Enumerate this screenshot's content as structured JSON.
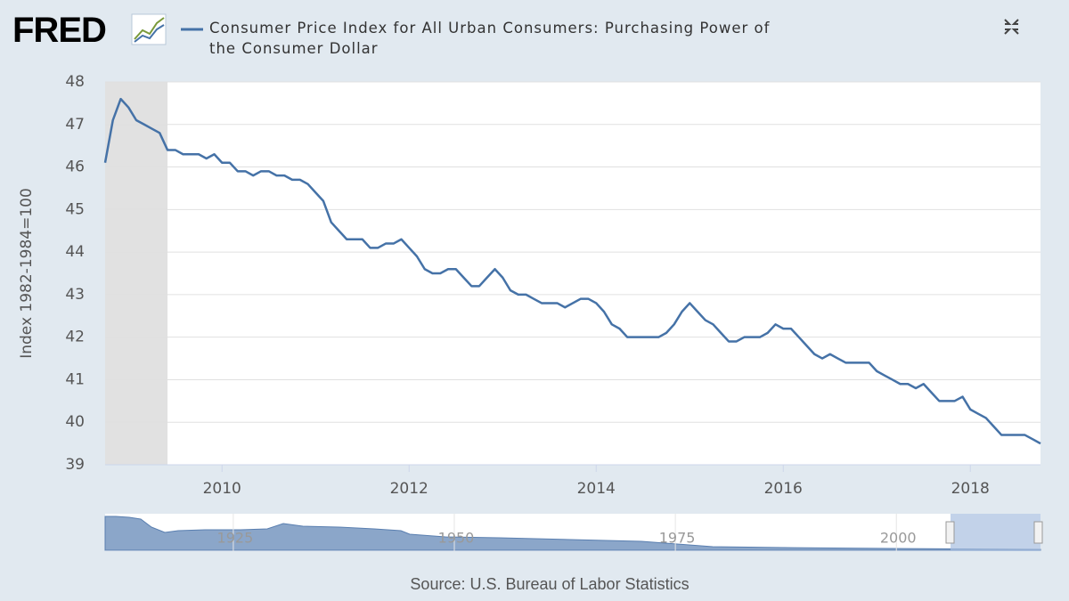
{
  "chart_data": {
    "type": "line",
    "logo": "FRED",
    "ylabel": "Index 1982-1984=100",
    "source": "Source: U.S. Bureau of Labor Statistics",
    "xlim": [
      2008.75,
      2018.75
    ],
    "xticks": [
      2010,
      2012,
      2014,
      2016,
      2018
    ],
    "ylim": [
      39,
      48
    ],
    "yticks": [
      39,
      40,
      41,
      42,
      43,
      44,
      45,
      46,
      47,
      48
    ],
    "grid": true,
    "recessions": [
      [
        2008.75,
        2009.417
      ]
    ],
    "x": [
      2008.75,
      2008.833,
      2008.917,
      2009.0,
      2009.083,
      2009.167,
      2009.25,
      2009.333,
      2009.417,
      2009.5,
      2009.583,
      2009.667,
      2009.75,
      2009.833,
      2009.917,
      2010.0,
      2010.083,
      2010.167,
      2010.25,
      2010.333,
      2010.417,
      2010.5,
      2010.583,
      2010.667,
      2010.75,
      2010.833,
      2010.917,
      2011.0,
      2011.083,
      2011.167,
      2011.25,
      2011.333,
      2011.417,
      2011.5,
      2011.583,
      2011.667,
      2011.75,
      2011.833,
      2011.917,
      2012.0,
      2012.083,
      2012.167,
      2012.25,
      2012.333,
      2012.417,
      2012.5,
      2012.583,
      2012.667,
      2012.75,
      2012.833,
      2012.917,
      2013.0,
      2013.083,
      2013.167,
      2013.25,
      2013.333,
      2013.417,
      2013.5,
      2013.583,
      2013.667,
      2013.75,
      2013.833,
      2013.917,
      2014.0,
      2014.083,
      2014.167,
      2014.25,
      2014.333,
      2014.417,
      2014.5,
      2014.583,
      2014.667,
      2014.75,
      2014.833,
      2014.917,
      2015.0,
      2015.083,
      2015.167,
      2015.25,
      2015.333,
      2015.417,
      2015.5,
      2015.583,
      2015.667,
      2015.75,
      2015.833,
      2015.917,
      2016.0,
      2016.083,
      2016.167,
      2016.25,
      2016.333,
      2016.417,
      2016.5,
      2016.583,
      2016.667,
      2016.75,
      2016.833,
      2016.917,
      2017.0,
      2017.083,
      2017.167,
      2017.25,
      2017.333,
      2017.417,
      2017.5,
      2017.583,
      2017.667,
      2017.75,
      2017.833,
      2017.917,
      2018.0,
      2018.083,
      2018.167,
      2018.25,
      2018.333,
      2018.417,
      2018.5,
      2018.583,
      2018.667,
      2018.75
    ],
    "series": [
      {
        "name": "Consumer Price Index for All Urban Consumers: Purchasing Power of the Consumer Dollar",
        "color": "#4572a7",
        "values": [
          46.1,
          47.1,
          47.6,
          47.4,
          47.1,
          47.0,
          46.9,
          46.8,
          46.4,
          46.4,
          46.3,
          46.3,
          46.3,
          46.2,
          46.3,
          46.1,
          46.1,
          45.9,
          45.9,
          45.8,
          45.9,
          45.9,
          45.8,
          45.8,
          45.7,
          45.7,
          45.6,
          45.4,
          45.2,
          44.7,
          44.5,
          44.3,
          44.3,
          44.3,
          44.1,
          44.1,
          44.2,
          44.2,
          44.3,
          44.1,
          43.9,
          43.6,
          43.5,
          43.5,
          43.6,
          43.6,
          43.4,
          43.2,
          43.2,
          43.4,
          43.6,
          43.4,
          43.1,
          43.0,
          43.0,
          42.9,
          42.8,
          42.8,
          42.8,
          42.7,
          42.8,
          42.9,
          42.9,
          42.8,
          42.6,
          42.3,
          42.2,
          42.0,
          42.0,
          42.0,
          42.0,
          42.0,
          42.1,
          42.3,
          42.6,
          42.8,
          42.6,
          42.4,
          42.3,
          42.1,
          41.9,
          41.9,
          42.0,
          42.0,
          42.0,
          42.1,
          42.3,
          42.2,
          42.2,
          42.0,
          41.8,
          41.6,
          41.5,
          41.6,
          41.5,
          41.4,
          41.4,
          41.4,
          41.4,
          41.2,
          41.1,
          41.0,
          40.9,
          40.9,
          40.8,
          40.9,
          40.7,
          40.5,
          40.5,
          40.5,
          40.6,
          40.3,
          40.2,
          40.1,
          39.9,
          39.7,
          39.7,
          39.7,
          39.7,
          39.6,
          39.5
        ]
      }
    ],
    "navigator": {
      "xlim": [
        1910.5,
        2016.3
      ],
      "xticks": [
        1925,
        1950,
        1975,
        2000
      ]
    }
  }
}
